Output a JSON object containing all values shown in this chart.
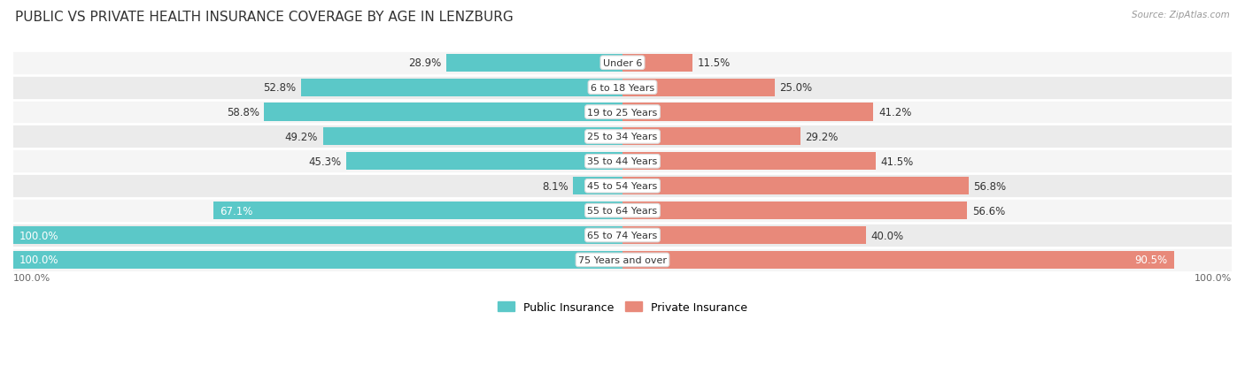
{
  "title": "PUBLIC VS PRIVATE HEALTH INSURANCE COVERAGE BY AGE IN LENZBURG",
  "source": "Source: ZipAtlas.com",
  "categories": [
    "Under 6",
    "6 to 18 Years",
    "19 to 25 Years",
    "25 to 34 Years",
    "35 to 44 Years",
    "45 to 54 Years",
    "55 to 64 Years",
    "65 to 74 Years",
    "75 Years and over"
  ],
  "public_values": [
    28.9,
    52.8,
    58.8,
    49.2,
    45.3,
    8.1,
    67.1,
    100.0,
    100.0
  ],
  "private_values": [
    11.5,
    25.0,
    41.2,
    29.2,
    41.5,
    56.8,
    56.6,
    40.0,
    90.5
  ],
  "public_color": "#5bc8c8",
  "private_color": "#e8897a",
  "row_bg_odd": "#f5f5f5",
  "row_bg_even": "#ebebeb",
  "title_fontsize": 11,
  "label_fontsize": 8.5,
  "cat_fontsize": 8.0,
  "bar_height": 0.72,
  "legend_labels": [
    "Public Insurance",
    "Private Insurance"
  ]
}
